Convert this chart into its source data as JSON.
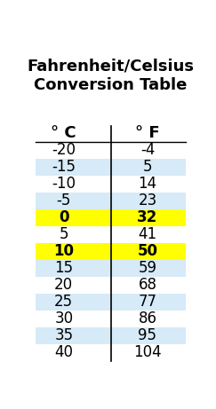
{
  "title": "Fahrenheit/Celsius\nConversion Table",
  "col_headers": [
    "° C",
    "° F"
  ],
  "rows": [
    [
      "-20",
      "-4"
    ],
    [
      "-15",
      "5"
    ],
    [
      "-10",
      "14"
    ],
    [
      "-5",
      "23"
    ],
    [
      "0",
      "32"
    ],
    [
      "5",
      "41"
    ],
    [
      "10",
      "50"
    ],
    [
      "15",
      "59"
    ],
    [
      "20",
      "68"
    ],
    [
      "25",
      "77"
    ],
    [
      "30",
      "86"
    ],
    [
      "35",
      "95"
    ],
    [
      "40",
      "104"
    ]
  ],
  "row_colors": [
    "white",
    "#d6eaf8",
    "white",
    "#d6eaf8",
    "#ffff00",
    "white",
    "#ffff00",
    "#d6eaf8",
    "white",
    "#d6eaf8",
    "white",
    "#d6eaf8",
    "white"
  ],
  "highlight_rows": [
    4,
    6
  ],
  "background_color": "white",
  "title_fontsize": 13,
  "header_fontsize": 13,
  "data_fontsize": 12,
  "title_color": "black",
  "header_color": "black",
  "data_color": "black",
  "highlight_text_color": "black"
}
